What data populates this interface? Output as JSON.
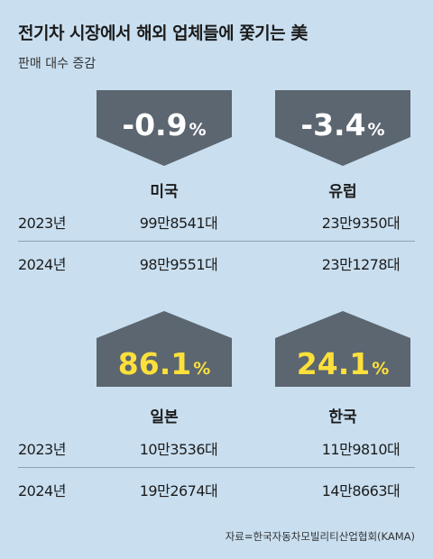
{
  "title": "전기차 시장에서 해외 업체들에 쫓기는 美",
  "subtitle": "판매 대수 증감",
  "colors": {
    "background": "#c9dff0",
    "badge": "#5c6670",
    "negative_text": "#ffffff",
    "positive_text": "#fde03a"
  },
  "chart_data": {
    "type": "table",
    "columns": [
      "2023년",
      "2024년"
    ],
    "unit": "대",
    "regions": [
      {
        "name": "미국",
        "change_value": "-0.9",
        "change_unit": "%",
        "direction": "down",
        "values": [
          "99만8541대",
          "98만9551대"
        ]
      },
      {
        "name": "유럽",
        "change_value": "-3.4",
        "change_unit": "%",
        "direction": "down",
        "values": [
          "23만9350대",
          "23만1278대"
        ]
      },
      {
        "name": "일본",
        "change_value": "86.1",
        "change_unit": "%",
        "direction": "up",
        "values": [
          "10만3536대",
          "19만2674대"
        ]
      },
      {
        "name": "한국",
        "change_value": "24.1",
        "change_unit": "%",
        "direction": "up",
        "values": [
          "11만9810대",
          "14만8663대"
        ]
      }
    ]
  },
  "source": "자료=한국자동차모빌리티산업협회(KAMA)"
}
